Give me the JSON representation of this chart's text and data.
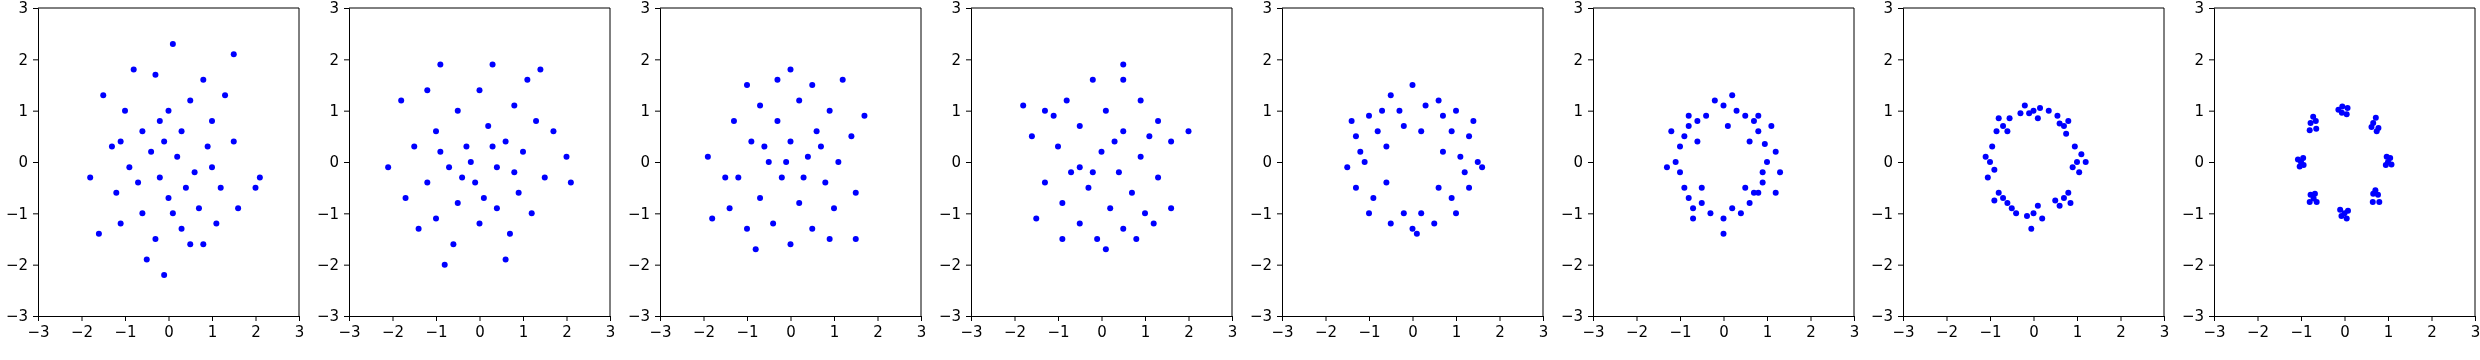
{
  "chart_data": [
    {
      "type": "scatter",
      "color": "#0000ff",
      "marker": "circle",
      "xlim": [
        -3,
        3
      ],
      "ylim": [
        -3,
        3
      ],
      "xticks": [
        {
          "value": -3,
          "label": "−3"
        },
        {
          "value": -2,
          "label": "−2"
        },
        {
          "value": -1,
          "label": "−1"
        },
        0,
        1,
        2,
        3
      ],
      "yticks": [
        {
          "value": -3,
          "label": "−3"
        },
        {
          "value": -2,
          "label": "−2"
        },
        {
          "value": -1,
          "label": "−1"
        },
        0,
        1,
        2,
        3
      ],
      "x": [
        0.1,
        -0.1,
        1.5,
        -1.6,
        2.1,
        2.0,
        -1.8,
        -1.5,
        -0.8,
        0.8,
        1.3,
        -0.3,
        0.5,
        -1.0,
        0,
        1.0,
        -0.6,
        0.3,
        -1.3,
        0.9,
        -0.4,
        0.2,
        1.5,
        -0.9,
        0.6,
        -0.2,
        1.2,
        -1.2,
        0.0,
        0.7,
        -0.6,
        1.6,
        -1.1,
        0.3,
        -0.3,
        0.8,
        0.5,
        -0.5,
        1.1,
        -0.1,
        0.4,
        -0.7,
        -1.1,
        1.0,
        0.1,
        -0.2
      ],
      "values": [
        2.3,
        -2.2,
        2.1,
        -1.4,
        -0.3,
        -0.5,
        -0.3,
        1.3,
        1.8,
        1.6,
        1.3,
        1.7,
        1.2,
        1.0,
        1.0,
        0.8,
        0.6,
        0.6,
        0.3,
        0.3,
        0.2,
        0.1,
        0.4,
        -0.1,
        -0.2,
        -0.3,
        -0.5,
        -0.6,
        -0.7,
        -0.9,
        -1.0,
        -0.9,
        -1.2,
        -1.3,
        -1.5,
        -1.6,
        -1.6,
        -1.9,
        -1.2,
        0.4,
        -0.5,
        -0.4,
        0.4,
        -0.1,
        -1.0,
        0.8
      ]
    },
    {
      "type": "scatter",
      "color": "#0000ff",
      "marker": "circle",
      "xlim": [
        -3,
        3
      ],
      "ylim": [
        -3,
        3
      ],
      "xticks": [
        {
          "value": -3,
          "label": "−3"
        },
        {
          "value": -2,
          "label": "−2"
        },
        {
          "value": -1,
          "label": "−1"
        },
        0,
        1,
        2,
        3
      ],
      "yticks": [
        {
          "value": -3,
          "label": "−3"
        },
        {
          "value": -2,
          "label": "−2"
        },
        {
          "value": -1,
          "label": "−1"
        },
        0,
        1,
        2,
        3
      ],
      "x": [
        -0.9,
        0.3,
        1.4,
        -1.8,
        -1.2,
        0.0,
        0.8,
        -0.5,
        1.3,
        -1.0,
        0.2,
        0.6,
        -1.5,
        -0.3,
        1.0,
        2.0,
        -2.1,
        -0.7,
        0.4,
        1.5,
        -1.2,
        -0.1,
        0.9,
        -1.7,
        -0.5,
        0.4,
        1.2,
        -1.0,
        0.0,
        0.7,
        -0.6,
        -0.8,
        0.6,
        2.1,
        -0.2,
        0.3,
        -0.4,
        0.8,
        -0.9,
        0.1,
        1.1,
        -1.4,
        1.7
      ],
      "values": [
        1.9,
        1.9,
        1.8,
        1.2,
        1.4,
        1.4,
        1.1,
        1.0,
        0.8,
        0.6,
        0.7,
        0.4,
        0.3,
        0.3,
        0.2,
        0.1,
        -0.1,
        -0.1,
        -0.1,
        -0.3,
        -0.4,
        -0.4,
        -0.6,
        -0.7,
        -0.8,
        -0.9,
        -1.0,
        -1.1,
        -1.2,
        -1.4,
        -1.6,
        -2.0,
        -1.9,
        -0.4,
        0.0,
        0.3,
        -0.3,
        -0.2,
        0.2,
        -0.7,
        1.6,
        -1.3,
        0.6
      ]
    },
    {
      "type": "scatter",
      "color": "#0000ff",
      "marker": "circle",
      "xlim": [
        -3,
        3
      ],
      "ylim": [
        -3,
        3
      ],
      "xticks": [
        {
          "value": -3,
          "label": "−3"
        },
        {
          "value": -2,
          "label": "−2"
        },
        {
          "value": -1,
          "label": "−1"
        },
        0,
        1,
        2,
        3
      ],
      "yticks": [
        {
          "value": -3,
          "label": "−3"
        },
        {
          "value": -2,
          "label": "−2"
        },
        {
          "value": -1,
          "label": "−1"
        },
        0,
        1,
        2,
        3
      ],
      "x": [
        0.0,
        -0.3,
        0.5,
        1.2,
        -1.0,
        -0.7,
        0.2,
        0.9,
        -1.3,
        -0.3,
        0.6,
        1.4,
        -0.9,
        0.0,
        -1.9,
        -0.5,
        0.4,
        1.1,
        -1.2,
        -0.2,
        0.8,
        1.5,
        -0.7,
        0.2,
        -1.4,
        1.0,
        -0.4,
        0.5,
        -1.0,
        0.0,
        -0.8,
        0.9,
        1.5,
        -1.8,
        1.7,
        -0.1,
        0.3,
        -0.6,
        0.7,
        -1.5
      ],
      "values": [
        1.8,
        1.6,
        1.5,
        1.6,
        1.5,
        1.1,
        1.2,
        1.0,
        0.8,
        0.8,
        0.6,
        0.5,
        0.4,
        0.4,
        0.1,
        0.0,
        0.1,
        0.0,
        -0.3,
        -0.3,
        -0.4,
        -0.6,
        -0.7,
        -0.8,
        -0.9,
        -0.9,
        -1.2,
        -1.3,
        -1.3,
        -1.6,
        -1.7,
        -1.5,
        -1.5,
        -1.1,
        0.9,
        0.0,
        -0.3,
        0.3,
        0.3,
        -0.3
      ]
    },
    {
      "type": "scatter",
      "color": "#0000ff",
      "marker": "circle",
      "xlim": [
        -3,
        3
      ],
      "ylim": [
        -3,
        3
      ],
      "xticks": [
        {
          "value": -3,
          "label": "−3"
        },
        {
          "value": -2,
          "label": "−2"
        },
        {
          "value": -1,
          "label": "−1"
        },
        0,
        1,
        2,
        3
      ],
      "yticks": [
        {
          "value": -3,
          "label": "−3"
        },
        {
          "value": -2,
          "label": "−2"
        },
        {
          "value": -1,
          "label": "−1"
        },
        0,
        1,
        2,
        3
      ],
      "x": [
        0.5,
        -0.2,
        0.5,
        -0.8,
        0.9,
        -1.3,
        0.1,
        1.3,
        -0.5,
        0.5,
        -1.6,
        1.6,
        -1.0,
        0.0,
        0.9,
        2.0,
        -1.8,
        -0.5,
        0.4,
        1.3,
        -1.3,
        -0.3,
        0.7,
        1.6,
        -0.9,
        0.2,
        1.0,
        -1.5,
        -0.5,
        0.5,
        -0.1,
        -0.9,
        0.8,
        0.1,
        -1.1,
        1.1,
        -0.7,
        0.3,
        -0.2,
        1.2
      ],
      "values": [
        1.9,
        1.6,
        1.6,
        1.2,
        1.2,
        1.0,
        1.0,
        0.8,
        0.7,
        0.6,
        0.5,
        0.4,
        0.3,
        0.2,
        0.1,
        0.6,
        1.1,
        -0.1,
        -0.2,
        -0.3,
        -0.4,
        -0.5,
        -0.6,
        -0.9,
        -0.8,
        -0.9,
        -1.0,
        -1.1,
        -1.2,
        -1.3,
        -1.5,
        -1.5,
        -1.5,
        -1.7,
        0.9,
        0.5,
        -0.2,
        0.4,
        -0.2,
        -1.2
      ]
    },
    {
      "type": "scatter",
      "color": "#0000ff",
      "marker": "circle",
      "xlim": [
        -3,
        3
      ],
      "ylim": [
        -3,
        3
      ],
      "xticks": [
        {
          "value": -3,
          "label": "−3"
        },
        {
          "value": -2,
          "label": "−2"
        },
        {
          "value": -1,
          "label": "−1"
        },
        0,
        1,
        2,
        3
      ],
      "yticks": [
        {
          "value": -3,
          "label": "−3"
        },
        {
          "value": -2,
          "label": "−2"
        },
        {
          "value": -1,
          "label": "−1"
        },
        0,
        1,
        2,
        3
      ],
      "x": [
        0.0,
        0.6,
        -0.5,
        1.0,
        -1.0,
        0.3,
        -0.3,
        1.3,
        -1.3,
        0.9,
        -0.8,
        1.5,
        -1.5,
        1.1,
        -1.1,
        0.7,
        -0.6,
        1.3,
        -1.3,
        0.9,
        -0.9,
        1.0,
        -1.0,
        0.5,
        -0.5,
        0.0,
        0.2,
        -0.2,
        0.6,
        -0.6,
        0.2,
        -0.2,
        1.4,
        -1.4,
        1.6,
        0.7,
        -0.7,
        0.1,
        1.2,
        -1.2
      ],
      "values": [
        1.5,
        1.2,
        1.3,
        1.0,
        0.9,
        1.1,
        1.0,
        0.5,
        0.5,
        0.6,
        0.6,
        0.0,
        -0.1,
        0.1,
        0.0,
        0.2,
        0.3,
        -0.5,
        -0.5,
        -0.7,
        -0.7,
        -1.0,
        -1.0,
        -1.2,
        -1.2,
        -1.3,
        -1.0,
        -1.0,
        -0.5,
        -0.4,
        0.6,
        0.7,
        0.8,
        0.8,
        -0.1,
        0.9,
        1.0,
        -1.4,
        -0.2,
        0.2
      ]
    },
    {
      "type": "scatter",
      "color": "#0000ff",
      "marker": "circle",
      "xlim": [
        -3,
        3
      ],
      "ylim": [
        -3,
        3
      ],
      "xticks": [
        {
          "value": -3,
          "label": "−3"
        },
        {
          "value": -2,
          "label": "−2"
        },
        {
          "value": -1,
          "label": "−1"
        },
        0,
        1,
        2,
        3
      ],
      "yticks": [
        {
          "value": -3,
          "label": "−3"
        },
        {
          "value": -2,
          "label": "−2"
        },
        {
          "value": -1,
          "label": "−1"
        },
        0,
        1,
        2,
        3
      ],
      "x": [
        1.0,
        1.2,
        0.9,
        0.95,
        0.8,
        0.7,
        0.5,
        0.3,
        0.0,
        -0.2,
        -0.4,
        -0.6,
        -0.8,
        -0.9,
        -1.0,
        -1.1,
        -1.3,
        -1.0,
        -0.9,
        -0.8,
        -0.7,
        -0.5,
        -0.3,
        0.0,
        0.2,
        0.4,
        0.6,
        0.8,
        0.9,
        1.2,
        0.8,
        -0.8,
        -0.7,
        0.7,
        0.2,
        -1.2,
        1.1,
        0.0,
        -0.6,
        0.6,
        0.5,
        -0.5,
        0.1,
        1.3
      ],
      "values": [
        0.0,
        0.2,
        -0.2,
        0.35,
        0.6,
        0.8,
        0.9,
        1.0,
        1.1,
        1.2,
        0.9,
        0.8,
        0.7,
        0.5,
        0.3,
        0.0,
        -0.1,
        -0.2,
        -0.5,
        -0.7,
        -0.9,
        -0.8,
        -1.0,
        -1.1,
        -0.9,
        -1.0,
        -0.8,
        -0.6,
        -0.4,
        -0.6,
        0.9,
        0.9,
        -1.1,
        -0.6,
        1.3,
        0.6,
        0.7,
        -1.4,
        0.4,
        0.4,
        -0.5,
        -0.5,
        0.7,
        -0.2
      ]
    },
    {
      "type": "scatter",
      "color": "#0000ff",
      "marker": "circle",
      "xlim": [
        -3,
        3
      ],
      "ylim": [
        -3,
        3
      ],
      "xticks": [
        {
          "value": -3,
          "label": "−3"
        },
        {
          "value": -2,
          "label": "−2"
        },
        {
          "value": -1,
          "label": "−1"
        },
        0,
        1,
        2,
        3
      ],
      "yticks": [
        {
          "value": -3,
          "label": "−3"
        },
        {
          "value": -2,
          "label": "−2"
        },
        {
          "value": -1,
          "label": "−1"
        },
        0,
        1,
        2,
        3
      ],
      "x": [
        1.0,
        1.1,
        0.9,
        1.05,
        0.95,
        0.7,
        0.8,
        0.6,
        0.75,
        0.55,
        0.0,
        0.15,
        -0.1,
        0.1,
        -0.2,
        -0.7,
        -0.8,
        -0.6,
        -0.85,
        -0.55,
        -1.0,
        -1.1,
        -0.9,
        -1.05,
        -0.95,
        -0.7,
        -0.8,
        -0.6,
        -0.9,
        -0.5,
        0.0,
        0.1,
        -0.15,
        0.2,
        -0.05,
        0.7,
        0.8,
        0.6,
        0.85,
        0.5,
        0.35,
        -0.4,
        1.2,
        -0.3
      ],
      "values": [
        0.0,
        0.15,
        -0.1,
        -0.2,
        0.3,
        0.7,
        0.8,
        0.75,
        0.55,
        0.9,
        1.0,
        1.05,
        0.95,
        0.85,
        1.1,
        0.7,
        0.85,
        0.6,
        0.6,
        0.85,
        0.0,
        0.1,
        -0.15,
        -0.3,
        0.3,
        -0.7,
        -0.6,
        -0.8,
        -0.75,
        -0.9,
        -1.0,
        -0.85,
        -1.05,
        -1.1,
        -1.3,
        -0.7,
        -0.6,
        -0.85,
        -0.8,
        -0.75,
        1.0,
        -1.0,
        0.0,
        0.95
      ]
    },
    {
      "type": "scatter",
      "color": "#0000ff",
      "marker": "circle",
      "xlim": [
        -3,
        3
      ],
      "ylim": [
        -3,
        3
      ],
      "xticks": [
        {
          "value": -3,
          "label": "−3"
        },
        {
          "value": -2,
          "label": "−2"
        },
        {
          "value": -1,
          "label": "−1"
        },
        0,
        1,
        2,
        3
      ],
      "yticks": [
        {
          "value": -3,
          "label": "−3"
        },
        {
          "value": -2,
          "label": "−2"
        },
        {
          "value": -1,
          "label": "−1"
        },
        0,
        1,
        2,
        3
      ],
      "x": [
        1.0,
        1.05,
        0.95,
        1.08,
        0.97,
        0.72,
        0.78,
        0.66,
        0.74,
        0.62,
        -0.14,
        0.07,
        -0.06,
        0.05,
        -0.05,
        -0.72,
        -0.78,
        -0.65,
        -0.8,
        -0.66,
        -1.0,
        -1.07,
        -0.94,
        -1.03,
        -0.95,
        -0.71,
        -0.78,
        -0.64,
        -0.8,
        -0.68,
        0.0,
        0.08,
        -0.07,
        0.05,
        -0.1,
        0.71,
        0.77,
        0.65,
        0.8,
        0.66
      ],
      "values": [
        0.0,
        0.08,
        -0.06,
        -0.05,
        0.1,
        0.86,
        0.66,
        0.76,
        0.6,
        0.68,
        1.02,
        1.05,
        0.96,
        0.93,
        1.08,
        0.88,
        0.76,
        0.65,
        0.62,
        0.8,
        0.0,
        0.05,
        -0.06,
        -0.09,
        0.08,
        -0.71,
        -0.64,
        -0.78,
        -0.78,
        -0.62,
        -1.0,
        -0.95,
        -1.05,
        -1.1,
        -0.93,
        -0.55,
        -0.64,
        -0.78,
        -0.78,
        -0.62
      ]
    }
  ]
}
